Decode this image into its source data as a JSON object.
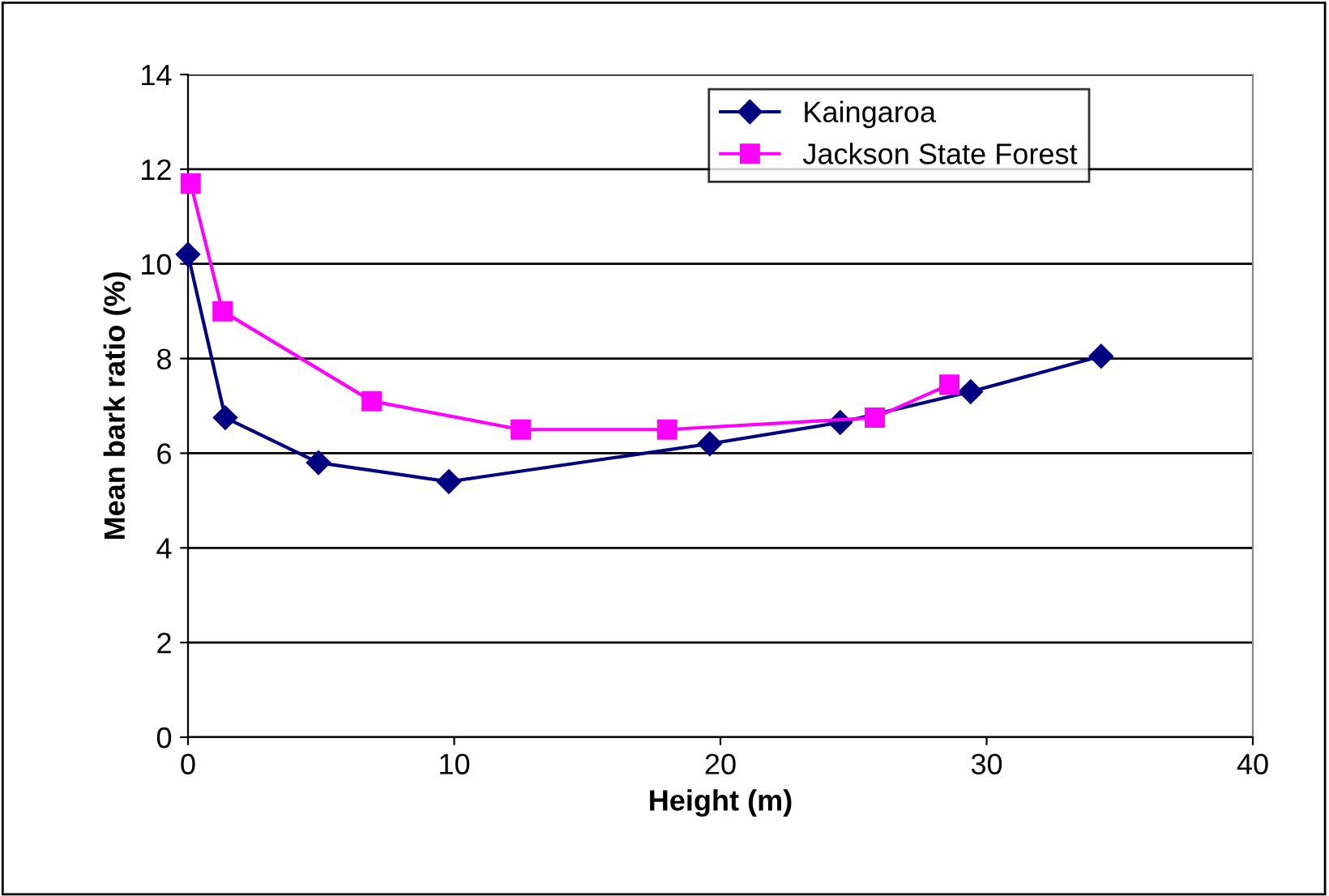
{
  "chart_data": {
    "type": "line",
    "xlabel": "Height (m)",
    "ylabel": "Mean bark ratio (%)",
    "xlim": [
      0,
      40
    ],
    "xticks": [
      0,
      10,
      20,
      30,
      40
    ],
    "ylim": [
      0,
      14
    ],
    "yticks": [
      0,
      2,
      4,
      6,
      8,
      10,
      12,
      14
    ],
    "grid": "y",
    "legend": "top right",
    "line_style": "solid",
    "series": [
      {
        "name": "Kaingaroa",
        "color": "#000080",
        "marker": "diamond",
        "x": [
          0,
          1.4,
          4.9,
          9.8,
          19.6,
          24.5,
          29.4,
          34.3
        ],
        "values": [
          10.2,
          6.75,
          5.8,
          5.4,
          6.2,
          6.65,
          7.3,
          8.05
        ]
      },
      {
        "name": "Jackson State Forest",
        "color": "#ff00ff",
        "marker": "square",
        "x": [
          0.1,
          1.3,
          6.9,
          12.5,
          18.0,
          25.8,
          28.6
        ],
        "values": [
          11.7,
          9.0,
          7.1,
          6.5,
          6.5,
          6.75,
          7.45
        ]
      }
    ]
  }
}
